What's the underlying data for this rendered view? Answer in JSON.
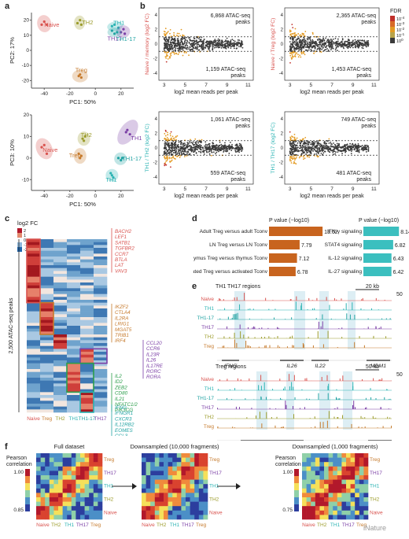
{
  "panel_labels": {
    "a": "a",
    "b": "b",
    "c": "c",
    "d": "d",
    "e": "e",
    "f": "f"
  },
  "colors": {
    "naive": "#d9534f",
    "th2": "#9b9b2a",
    "treg": "#c67a2c",
    "th1": "#2bb3b3",
    "th17": "#7b3fa6",
    "th117": "#22a3a3",
    "bar_left": "#c8641e",
    "bar_right": "#3bbfbf",
    "ma_gray": "#3a3a3a",
    "ma_red": "#c0302a",
    "ma_orange": "#e39a22"
  },
  "pca": {
    "top": {
      "xlabel": "PC1: 50%",
      "ylabel": "PC2: 17%",
      "xticks": [
        "-40",
        "-20",
        "0",
        "20"
      ],
      "yticks": [
        "20",
        "10",
        "0",
        "-10",
        "-20"
      ],
      "labels": {
        "naive": "Naive",
        "th2": "TH2",
        "th1": "TH1",
        "th17": "TH17",
        "th117": "TH1-17",
        "treg": "Treg"
      },
      "points": {
        "naive": [
          [
            -42,
            17
          ],
          [
            -40,
            19
          ],
          [
            -38,
            17
          ]
        ],
        "th2": [
          [
            -14,
            18
          ],
          [
            -12,
            20
          ],
          [
            -11,
            17
          ]
        ],
        "th1": [
          [
            13,
            16
          ],
          [
            15,
            17
          ],
          [
            18,
            15
          ]
        ],
        "th17": [
          [
            20,
            12
          ],
          [
            22,
            14
          ],
          [
            23,
            11
          ]
        ],
        "th117": [
          [
            13,
            13
          ],
          [
            15,
            11
          ],
          [
            17,
            12
          ]
        ],
        "treg": [
          [
            -13,
            -17
          ],
          [
            -11,
            -18
          ],
          [
            -12,
            -16
          ]
        ]
      }
    },
    "bottom": {
      "xlabel": "PC1: 50%",
      "ylabel": "PC3: 10%",
      "xticks": [
        "-40",
        "-20",
        "0",
        "20"
      ],
      "yticks": [
        "20",
        "10",
        "0",
        "-10"
      ],
      "labels": {
        "naive": "Naive",
        "th2": "TH2",
        "th1": "TH1",
        "th17": "TH17",
        "th117": "TH1-17",
        "treg": "Treg"
      },
      "points": {
        "naive": [
          [
            -42,
            5
          ],
          [
            -40,
            6
          ],
          [
            -38,
            2
          ]
        ],
        "th2": [
          [
            -10,
            9
          ],
          [
            -9,
            8
          ],
          [
            -8,
            10
          ]
        ],
        "th1": [
          [
            12,
            -7
          ],
          [
            13,
            -8
          ],
          [
            14,
            -9
          ]
        ],
        "th17": [
          [
            24,
            12
          ],
          [
            25,
            13
          ],
          [
            27,
            11
          ]
        ],
        "th117": [
          [
            18,
            0
          ],
          [
            20,
            -1
          ],
          [
            21,
            0
          ]
        ],
        "treg": [
          [
            -13,
            2
          ],
          [
            -12,
            0
          ],
          [
            -11,
            1
          ]
        ]
      }
    }
  },
  "ma": {
    "xlabel": "log2 mean reads per peak",
    "xticks": [
      "3",
      "5",
      "7",
      "9",
      "11"
    ],
    "yticks": [
      "4",
      "2",
      "0",
      "-2",
      "-4"
    ],
    "panels": [
      {
        "ylabel": "Naive / memory (log2 FC)",
        "up": "6,868 ATAC-seq peaks",
        "down": "1,159 ATAC-seq peaks"
      },
      {
        "ylabel": "Naive / Treg (log2 FC)",
        "up": "2,365 ATAC-seq peaks",
        "down": "1,453 ATAC-seq peaks"
      },
      {
        "ylabel": "TH1 / TH2 (log2 FC)",
        "up": "1,061 ATAC-seq peaks",
        "down": "559 ATAC-seq peaks"
      },
      {
        "ylabel": "TH1 / TH17 (log2 FC)",
        "up": "749 ATAC-seq peaks",
        "down": "481 ATAC-seq peaks"
      }
    ],
    "fdr": {
      "title": "FDR",
      "ticks": [
        "10^-4",
        "10^-3",
        "10^-2",
        "10^-1",
        "10^0"
      ]
    }
  },
  "heatmap": {
    "title": "log2 FC",
    "scale": [
      "2",
      "1",
      "0",
      "-1",
      "-2"
    ],
    "ylabel": "2,500 ATAC-seq peaks",
    "columns": [
      "Naive",
      "Treg",
      "TH2",
      "TH1",
      "TH1-17",
      "TH17"
    ],
    "gene_groups": [
      {
        "genes": [
          "BACH2",
          "LEF1",
          "SATB1",
          "TGFBR2",
          "CCR7",
          "BTLA",
          "LAT",
          "VAV3"
        ],
        "color": "#d9534f"
      },
      {
        "genes": [
          "IKZF2",
          "CTLA4",
          "IL2RA",
          "LRIG1",
          "MGAT5",
          "TRIB1",
          "IRF4"
        ],
        "color": "#c67a2c"
      },
      {
        "genes": [
          "CCL20",
          "CCR6",
          "IL23R",
          "IL26",
          "IL17RE",
          "RORC",
          "RORA"
        ],
        "color": "#7b3fa6"
      },
      {
        "genes": [
          "IL2",
          "ID2",
          "ZEB2",
          "CD80",
          "IL21",
          "NFATC1/2",
          "PIK3CG"
        ],
        "color": "#2a9d4a"
      },
      {
        "genes": [
          "IFNG",
          "IFNGR1",
          "CXCR3",
          "IL12RB2",
          "EOMES",
          "CCL3",
          "GZMB"
        ],
        "color": "#22a3a3"
      }
    ]
  },
  "bars": {
    "left_title": "P value (−log10)",
    "right_title": "P value (−log10)",
    "left": [
      {
        "label": "Adult Treg versus adult Tconv",
        "value": 13.62
      },
      {
        "label": "LN Treg versus LN Tconv",
        "value": 7.79
      },
      {
        "label": "Thymus Treg versus thymus Tconv",
        "value": 7.12
      },
      {
        "label": "Activated Treg versus activated Tconv",
        "value": 6.78
      }
    ],
    "right": [
      {
        "label": "IFN-γ signaling",
        "value": 8.14
      },
      {
        "label": "STAT4 signaling",
        "value": 6.82
      },
      {
        "label": "IL-12 signaling",
        "value": 6.43
      },
      {
        "label": "IL-27 signaling",
        "value": 6.42
      }
    ],
    "left_max": 14,
    "right_max": 9
  },
  "tracks": {
    "top": {
      "title": "TH1 TH17 regions",
      "scale": "20 kb",
      "ymax": "50",
      "rows": [
        "Naive",
        "TH1",
        "TH1-17",
        "TH17",
        "TH2",
        "Treg"
      ],
      "genes": [
        "IFNG",
        "IL26",
        "IL22",
        "MDM1"
      ]
    },
    "bottom": {
      "title": "Treg regions",
      "scale": "50 kb",
      "ymax": "50",
      "rows": [
        "Naive",
        "TH1",
        "TH1-17",
        "TH17",
        "TH2",
        "Treg"
      ],
      "genes": [
        "IL2RA",
        "RBM17"
      ]
    }
  },
  "corr": {
    "colorbar_title": "Pearson correlation",
    "left_scale": [
      "1.00",
      "0.85"
    ],
    "right_scale": [
      "1.00",
      "0.75"
    ],
    "titles": [
      "Full dataset",
      "Downsampled (10,000 fragments)",
      "Downsampled (1,000 fragments)"
    ],
    "row_labels": [
      "Treg",
      "TH17",
      "TH1",
      "TH2",
      "Naive"
    ],
    "col_labels": [
      "Naive",
      "TH2",
      "TH1",
      "TH17",
      "Treg"
    ]
  },
  "watermark": "iNature"
}
